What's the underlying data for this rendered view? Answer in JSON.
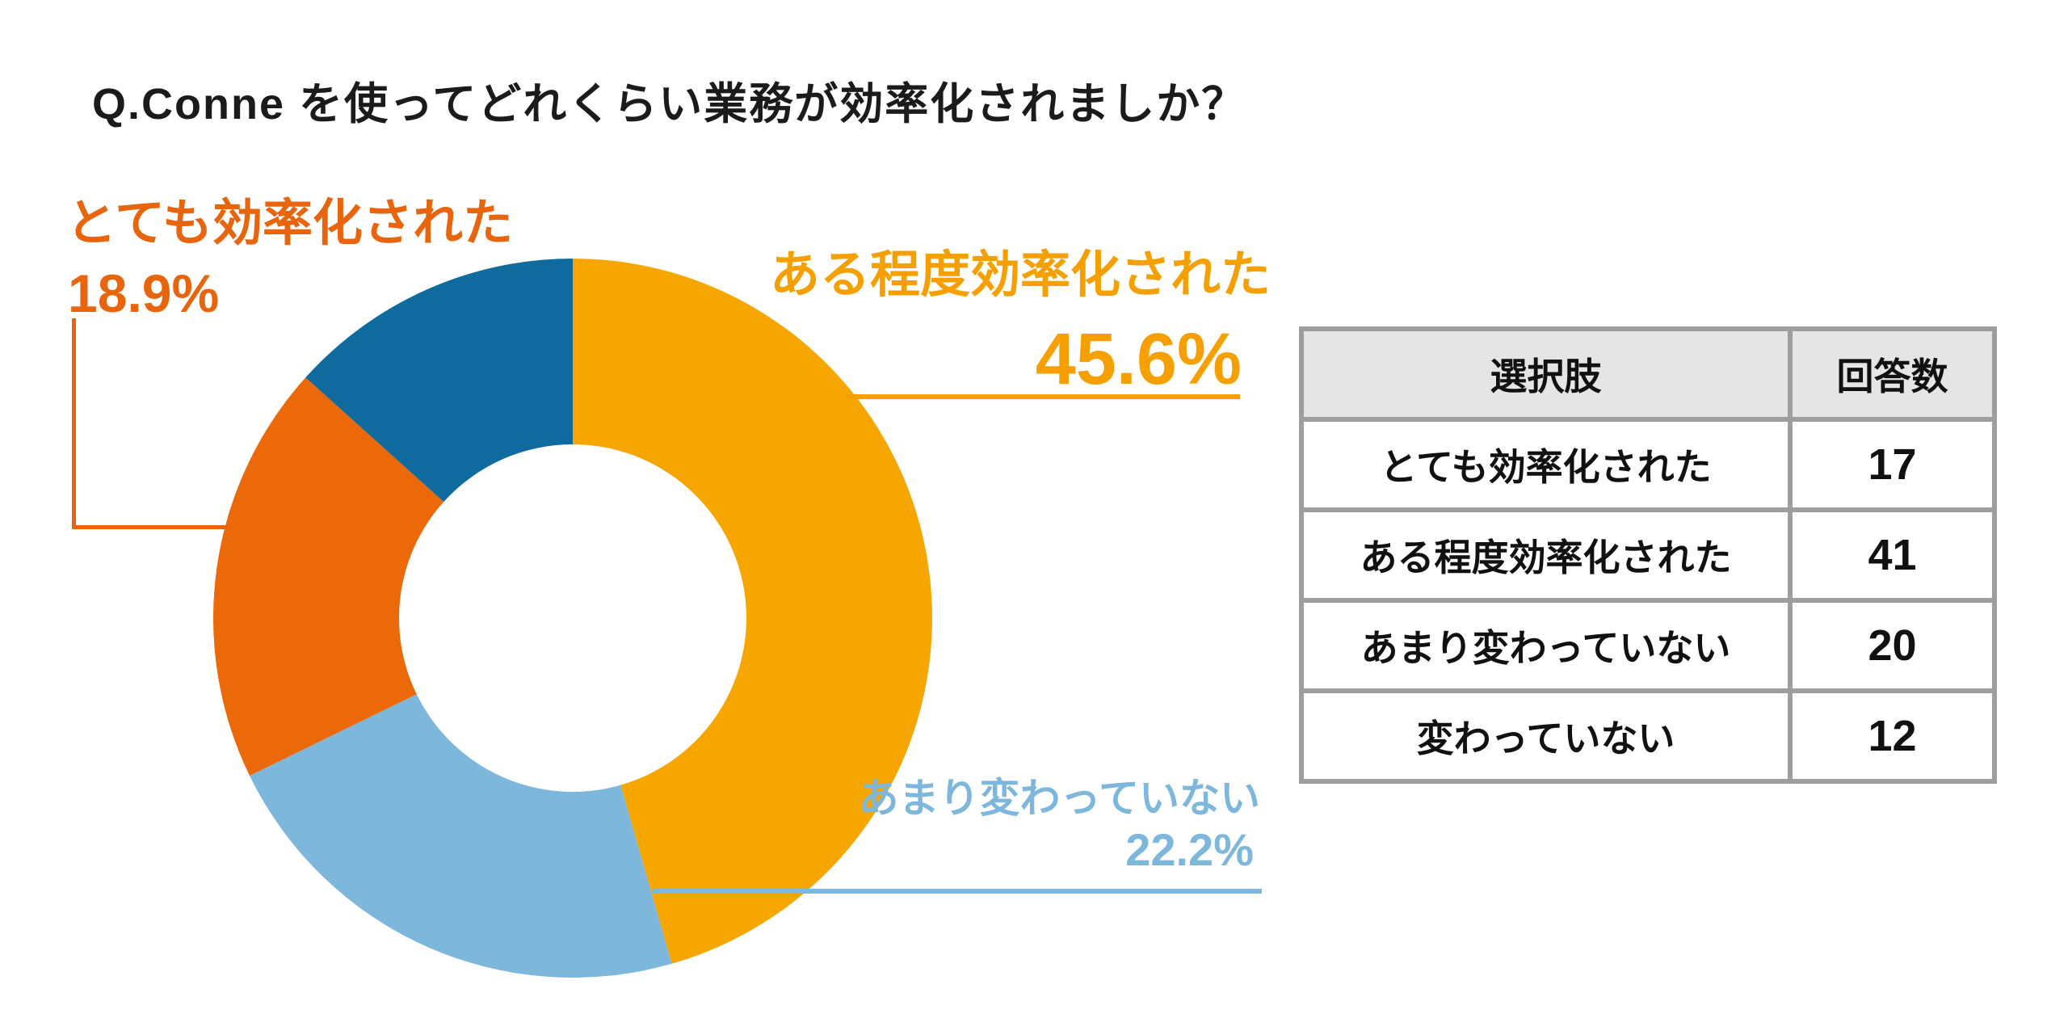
{
  "page": {
    "title": "Q.Conne を使ってどれくらい業務が効率化されましか？",
    "background": "#ffffff"
  },
  "chart_data": {
    "type": "pie",
    "subtype": "donut",
    "title": "Q.Conne を使ってどれくらい業務が効率化されましか？",
    "categories": [
      "ある程度効率化された",
      "あまり変わっていない",
      "とても効率化された",
      "変わっていない"
    ],
    "values": [
      41,
      20,
      17,
      12
    ],
    "percent_labels": [
      "45.6%",
      "22.2%",
      "18.9%",
      ""
    ],
    "colors": [
      "#F7A600",
      "#7EB7DC",
      "#EB6909",
      "#0F6A9E"
    ],
    "start_angle_deg": 0,
    "direction": "clockwise",
    "inner_radius_ratio": 0.483,
    "legend_position": "callout-labels"
  },
  "callouts": {
    "very": {
      "label": "とても効率化された",
      "value": "18.9%",
      "color": "#E8650D"
    },
    "somewhat": {
      "label": "ある程度効率化された",
      "value": "45.6%",
      "color": "#F5A000"
    },
    "not_much": {
      "label": "あまり変わっていない",
      "value": "22.2%",
      "color": "#7EB7DC"
    }
  },
  "table": {
    "headers": {
      "choice": "選択肢",
      "count": "回答数"
    },
    "rows": [
      {
        "choice": "とても効率化された",
        "count": "17"
      },
      {
        "choice": "ある程度効率化された",
        "count": "41"
      },
      {
        "choice": "あまり変わっていない",
        "count": "20"
      },
      {
        "choice": "変わっていない",
        "count": "12"
      }
    ],
    "header_bg": "#E5E5E5",
    "border_color": "#9E9E9E"
  }
}
